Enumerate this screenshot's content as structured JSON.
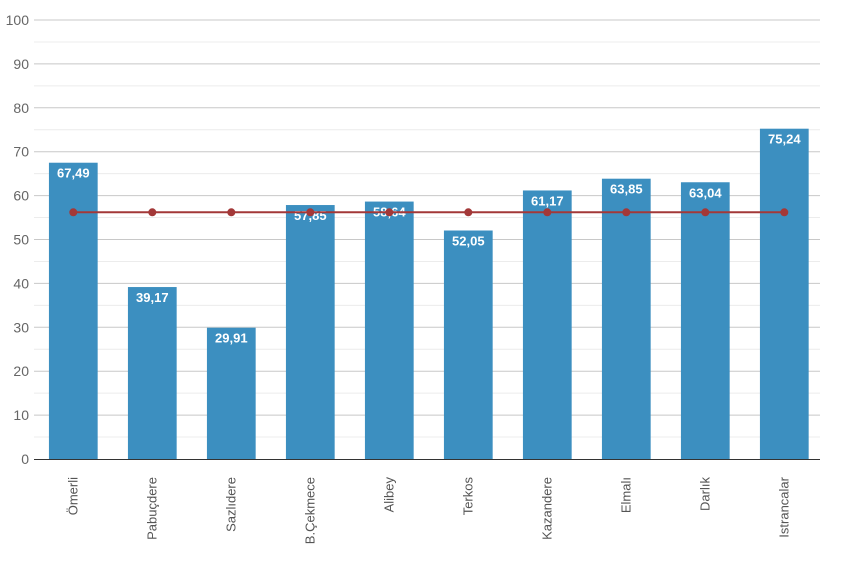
{
  "chart_data": {
    "type": "bar",
    "categories": [
      "Ömerli",
      "Pabuçdere",
      "Sazlıdere",
      "B.Çekmece",
      "Alibey",
      "Terkos",
      "Kazandere",
      "Elmalı",
      "Darlık",
      "Istrancalar"
    ],
    "series": [
      {
        "type": "bar",
        "values": [
          67.49,
          39.17,
          29.91,
          57.85,
          58.64,
          52.05,
          61.17,
          63.85,
          63.04,
          75.24
        ],
        "labels": [
          "67,49",
          "39,17",
          "29,91",
          "57,85",
          "58,64",
          "52,05",
          "61,17",
          "63,85",
          "63,04",
          "75,24"
        ],
        "color": "#3c8fc0"
      },
      {
        "type": "line",
        "values": [
          56.2,
          56.2,
          56.2,
          56.2,
          56.2,
          56.2,
          56.2,
          56.2,
          56.2,
          56.2
        ],
        "color": "#a33838"
      }
    ],
    "y_ticks": [
      "0",
      "10",
      "20",
      "30",
      "40",
      "50",
      "60",
      "70",
      "80",
      "90",
      "100"
    ],
    "ylim": [
      0,
      100
    ],
    "title": "",
    "xlabel": "",
    "ylabel": "",
    "grid": true,
    "minor_grid": true,
    "legend": "none"
  }
}
